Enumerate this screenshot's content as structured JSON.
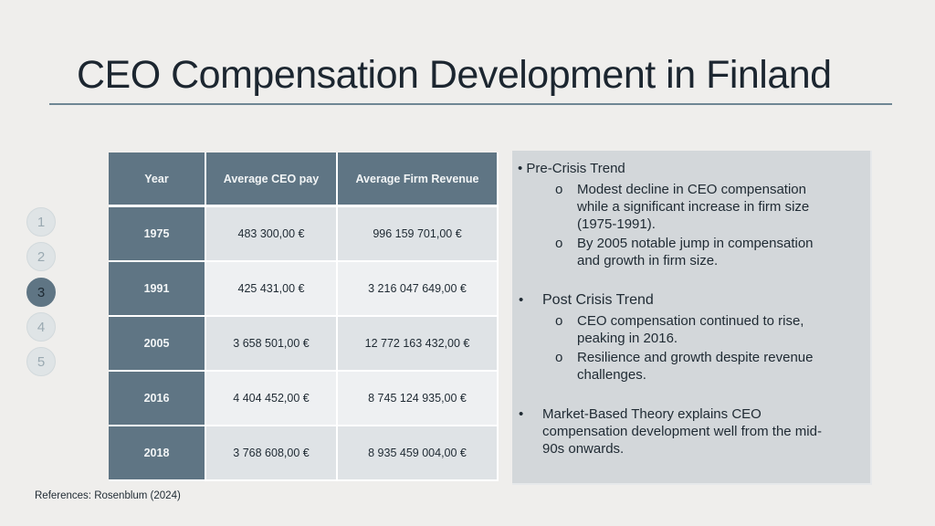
{
  "title": "CEO Compensation Development in Finland",
  "nav": [
    "1",
    "2",
    "3",
    "4",
    "5"
  ],
  "nav_active": "3",
  "table": {
    "headers": [
      "Year",
      "Average CEO pay",
      "Average Firm Revenue"
    ],
    "rows": [
      [
        "1975",
        "483 300,00 €",
        "996 159 701,00 €"
      ],
      [
        "1991",
        "425 431,00 €",
        "3 216 047 649,00 €"
      ],
      [
        "2005",
        "3 658 501,00 €",
        "12 772 163 432,00 €"
      ],
      [
        "2016",
        "4 404 452,00 €",
        "8 745 124 935,00 €"
      ],
      [
        "2018",
        "3 768 608,00 €",
        "8 935 459 004,00 €"
      ]
    ]
  },
  "panel": {
    "pre_crisis": {
      "heading": "• Pre-Crisis Trend",
      "sub_marker": "o",
      "sub1_lines": [
        "Modest decline in CEO compensation",
        "while a significant increase in firm size",
        "(1975-1991)."
      ],
      "sub2_lines": [
        "By 2005 notable jump in compensation",
        "and growth in firm size."
      ]
    },
    "post_crisis": {
      "bullet": "•",
      "heading": "Post Crisis Trend",
      "sub_marker": "o",
      "sub1_lines": [
        "CEO compensation continued to rise,",
        "peaking in 2016."
      ],
      "sub2_lines": [
        "Resilience and growth despite revenue",
        "challenges."
      ]
    },
    "market": {
      "bullet": "•",
      "lines": [
        "Market-Based Theory explains CEO",
        "compensation development well from the mid-",
        "90s onwards."
      ]
    }
  },
  "reference": "References: Rosenblum (2024)"
}
